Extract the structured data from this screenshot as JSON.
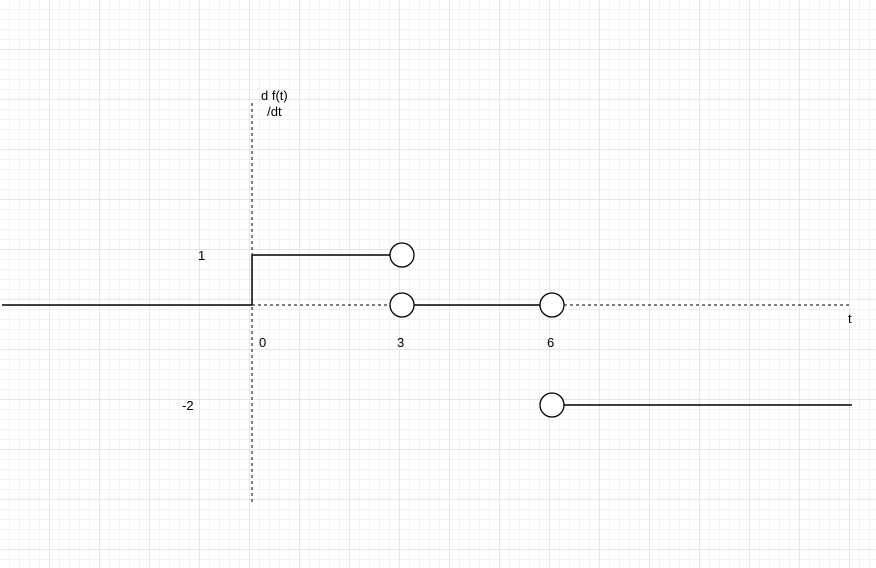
{
  "diagram": {
    "y_axis_label": "d f(t)\n/dt",
    "x_axis_label": "t",
    "x_tick_labels": [
      "0",
      "3",
      "6"
    ],
    "y_tick_labels": [
      "1",
      "-2"
    ],
    "segments": [
      {
        "from_t": null,
        "to_t": 0,
        "value": 0
      },
      {
        "from_t": 0,
        "to_t": 3,
        "value": 1
      },
      {
        "from_t": 3,
        "to_t": 6,
        "value": 0
      },
      {
        "from_t": 6,
        "to_t": null,
        "value": -2
      }
    ],
    "open_endpoints": [
      {
        "t": 3,
        "value": 1
      },
      {
        "t": 3,
        "value": 0
      },
      {
        "t": 6,
        "value": 0
      },
      {
        "t": 6,
        "value": -2
      }
    ],
    "colors": {
      "stroke": "#000000",
      "circle_fill": "#ffffff"
    }
  }
}
